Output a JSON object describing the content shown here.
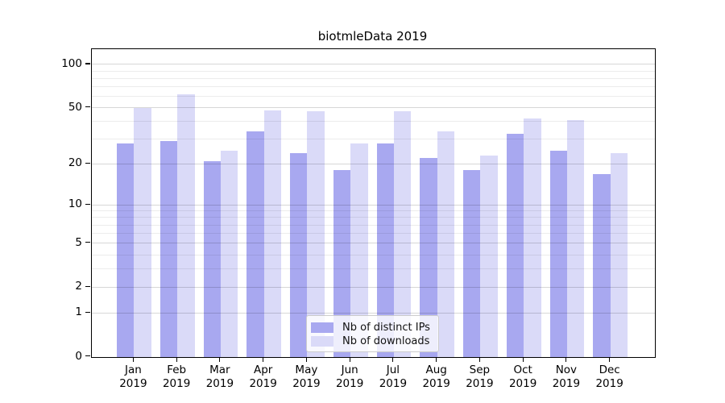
{
  "chart_data": {
    "type": "bar",
    "title": "biotmleData 2019",
    "year_label": "2019",
    "categories": [
      "Jan",
      "Feb",
      "Mar",
      "Apr",
      "May",
      "Jun",
      "Jul",
      "Aug",
      "Sep",
      "Oct",
      "Nov",
      "Dec"
    ],
    "series": [
      {
        "name": "Nb of distinct IPs",
        "color": "#a8a8f0",
        "values": [
          28,
          29,
          21,
          34,
          24,
          18,
          28,
          22,
          18,
          33,
          25,
          17
        ]
      },
      {
        "name": "Nb of downloads",
        "color": "#dadaf8",
        "values": [
          50,
          62,
          25,
          48,
          47,
          28,
          47,
          34,
          23,
          42,
          41,
          24
        ]
      }
    ],
    "xlabel": "",
    "ylabel": "",
    "yaxis": {
      "scale": "log1p",
      "ticks": [
        100,
        50,
        20,
        10,
        5,
        2,
        1,
        0
      ],
      "minor_gridlines": [
        3,
        4,
        6,
        7,
        8,
        9,
        30,
        40,
        60,
        70,
        80,
        90
      ],
      "ylim": [
        0,
        120
      ]
    },
    "grid": "on",
    "legend_position": "bottom-center"
  }
}
